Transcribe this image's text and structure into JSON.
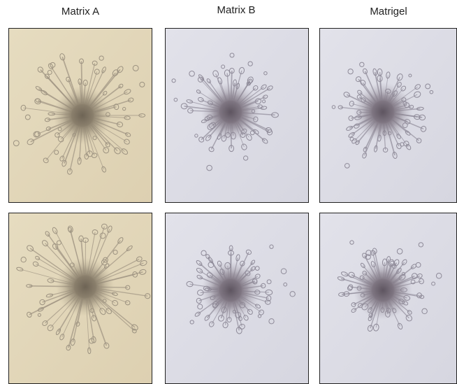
{
  "columns": {
    "labels": [
      "Matrix A",
      "Matrix B",
      "Matrigel"
    ]
  }
}
